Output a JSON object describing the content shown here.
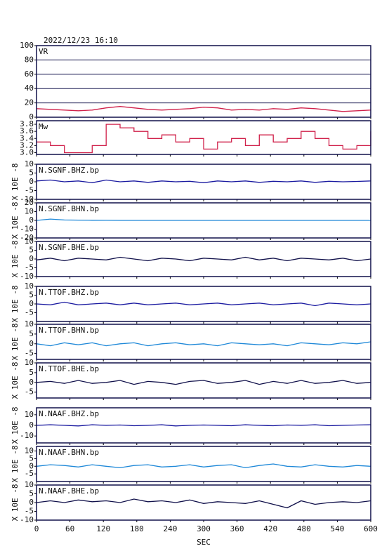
{
  "chart_data": [
    {
      "type": "line",
      "title": "2022/12/23 16:10",
      "label": "VR",
      "color": "#d0204a",
      "grid": true,
      "x": [
        0,
        25,
        50,
        75,
        100,
        125,
        150,
        175,
        200,
        225,
        250,
        275,
        300,
        325,
        350,
        375,
        400,
        425,
        450,
        475,
        500,
        525,
        550,
        575,
        600
      ],
      "xlim": [
        0,
        600
      ],
      "values": [
        12,
        11,
        10,
        9,
        10,
        13,
        15,
        13,
        11,
        10,
        11,
        12,
        14,
        13,
        10,
        11,
        10,
        12,
        11,
        13,
        12,
        10,
        8,
        9,
        10
      ],
      "ylim": [
        0,
        100
      ],
      "yticks": [
        0,
        20,
        40,
        60,
        80,
        100
      ]
    },
    {
      "type": "step",
      "label": "Mw",
      "color": "#d0204a",
      "x": [
        0,
        25,
        50,
        75,
        100,
        125,
        150,
        175,
        200,
        225,
        250,
        275,
        300,
        325,
        350,
        375,
        400,
        425,
        450,
        475,
        500,
        525,
        550,
        575,
        600
      ],
      "xlim": [
        0,
        600
      ],
      "values": [
        3.3,
        3.2,
        3.0,
        3.0,
        3.2,
        3.8,
        3.7,
        3.6,
        3.4,
        3.5,
        3.3,
        3.4,
        3.1,
        3.3,
        3.4,
        3.2,
        3.5,
        3.3,
        3.4,
        3.6,
        3.4,
        3.2,
        3.1,
        3.2,
        3.6
      ],
      "ylim": [
        2.95,
        3.9
      ],
      "yticks": [
        {
          "value": 3,
          "label": "3.0"
        },
        {
          "value": 3.2,
          "label": "3.2"
        },
        {
          "value": 3.4,
          "label": "3.4"
        },
        {
          "value": 3.6,
          "label": "3.6"
        },
        {
          "value": 3.8,
          "label": "3.8"
        }
      ]
    },
    {
      "type": "line",
      "label": "N.SGNF.BHZ.bp",
      "ylabel": "X 10E -8",
      "color": "#1a1aa0",
      "x": [
        0,
        25,
        50,
        75,
        100,
        125,
        150,
        175,
        200,
        225,
        250,
        275,
        300,
        325,
        350,
        375,
        400,
        425,
        450,
        475,
        500,
        525,
        550,
        575,
        600
      ],
      "xlim": [
        0,
        600
      ],
      "values": [
        0.5,
        1,
        0,
        0.5,
        -0.5,
        1,
        0,
        0.5,
        -0.3,
        0.5,
        0,
        0.3,
        -0.5,
        0.5,
        0,
        0.5,
        -0.3,
        0.3,
        0,
        0.5,
        -0.3,
        0.3,
        0,
        0.2,
        0.5
      ],
      "ylim": [
        -10,
        10
      ],
      "yticks": [
        -10,
        -5,
        0,
        5,
        10
      ]
    },
    {
      "type": "line",
      "label": "N.SGNF.BHN.bp",
      "ylabel": "X 10E -8",
      "color": "#1e88d8",
      "x": [
        0,
        25,
        50,
        75,
        100,
        125,
        150,
        175,
        200,
        225,
        250,
        275,
        300,
        325,
        350,
        375,
        400,
        425,
        450,
        475,
        500,
        525,
        550,
        575,
        600
      ],
      "xlim": [
        0,
        600
      ],
      "values": [
        0,
        1.5,
        0.5,
        0.3,
        0.2,
        0.1,
        0,
        0,
        0,
        0,
        0,
        0,
        0,
        0,
        0,
        0,
        0,
        0,
        0,
        0,
        0,
        0,
        0,
        0,
        0
      ],
      "ylim": [
        -20,
        20
      ],
      "yticks": [
        -20,
        -10,
        0,
        10,
        20
      ]
    },
    {
      "type": "line",
      "label": "N.SGNF.BHE.bp",
      "ylabel": "X 10E -8",
      "color": "#10104a",
      "x": [
        0,
        25,
        50,
        75,
        100,
        125,
        150,
        175,
        200,
        225,
        250,
        275,
        300,
        325,
        350,
        375,
        400,
        425,
        450,
        475,
        500,
        525,
        550,
        575,
        600
      ],
      "xlim": [
        0,
        600
      ],
      "values": [
        -0.5,
        0.5,
        -1,
        0.5,
        0,
        -0.5,
        1,
        0,
        -1,
        0.5,
        0,
        -1,
        0.5,
        0,
        -0.5,
        1,
        -0.5,
        0.5,
        -1,
        0.5,
        0,
        -0.5,
        0.5,
        -1,
        0
      ],
      "ylim": [
        -10,
        10
      ],
      "yticks": [
        -10,
        -5,
        0,
        5,
        10
      ]
    },
    {
      "type": "line",
      "label": "N.TTOF.BHZ.bp",
      "ylabel": "X 10E -8",
      "color": "#1a1aa0",
      "x": [
        0,
        25,
        50,
        75,
        100,
        125,
        150,
        175,
        200,
        225,
        250,
        275,
        300,
        325,
        350,
        375,
        400,
        425,
        450,
        475,
        500,
        525,
        550,
        575,
        600
      ],
      "xlim": [
        0,
        600
      ],
      "values": [
        0,
        -0.5,
        1,
        -0.5,
        0,
        0.5,
        -0.5,
        0.5,
        -0.5,
        0,
        0.5,
        -0.5,
        0,
        0.5,
        -0.5,
        0,
        0.5,
        -0.5,
        0,
        0.5,
        -1,
        0.5,
        0,
        -0.5,
        0
      ],
      "ylim": [
        -10,
        10
      ],
      "yticks": [
        -5,
        0,
        5,
        10
      ]
    },
    {
      "type": "line",
      "label": "N.TTOF.BHN.bp",
      "ylabel": "X 10E -8",
      "color": "#1e88d8",
      "x": [
        0,
        25,
        50,
        75,
        100,
        125,
        150,
        175,
        200,
        225,
        250,
        275,
        300,
        325,
        350,
        375,
        400,
        425,
        450,
        475,
        500,
        525,
        550,
        575,
        600
      ],
      "xlim": [
        0,
        600
      ],
      "values": [
        0,
        -1,
        0.5,
        -0.5,
        0.5,
        -1,
        0,
        0.5,
        -1,
        0,
        0.5,
        -0.5,
        0,
        -1,
        0.5,
        0,
        -0.5,
        0,
        -1,
        0.5,
        0,
        -0.5,
        0.5,
        0,
        1
      ],
      "ylim": [
        -8,
        10
      ],
      "yticks": [
        -5,
        0,
        5,
        10
      ]
    },
    {
      "type": "line",
      "label": "N.TTOF.BHE.bp",
      "ylabel": "X 10E -8",
      "color": "#10104a",
      "x": [
        0,
        25,
        50,
        75,
        100,
        125,
        150,
        175,
        200,
        225,
        250,
        275,
        300,
        325,
        350,
        375,
        400,
        425,
        450,
        475,
        500,
        525,
        550,
        575,
        600
      ],
      "xlim": [
        0,
        600
      ],
      "values": [
        0,
        0.5,
        -0.5,
        1,
        -0.5,
        0,
        1,
        -1,
        0.5,
        0,
        -1,
        0.5,
        1,
        -0.5,
        0,
        1,
        -1,
        0.5,
        -0.5,
        1,
        -0.5,
        0,
        1,
        -0.5,
        0
      ],
      "ylim": [
        -8,
        10
      ],
      "yticks": [
        -5,
        0,
        5,
        10
      ]
    },
    {
      "type": "line",
      "label": "N.NAAF.BHZ.bp",
      "ylabel": "X 10E -8",
      "color": "#1a1aa0",
      "x": [
        0,
        25,
        50,
        75,
        100,
        125,
        150,
        175,
        200,
        225,
        250,
        275,
        300,
        325,
        350,
        375,
        400,
        425,
        450,
        475,
        500,
        525,
        550,
        575,
        600
      ],
      "xlim": [
        0,
        600
      ],
      "values": [
        0,
        0.5,
        0,
        -0.5,
        0.5,
        0,
        0.3,
        -0.3,
        0,
        0.5,
        -0.5,
        0,
        0.3,
        0,
        -0.3,
        0.5,
        0,
        -0.3,
        0.3,
        0,
        0.5,
        -0.3,
        0,
        0.3,
        0.5
      ],
      "ylim": [
        -16.5,
        16.5
      ],
      "yticks": [
        -10,
        0,
        10
      ]
    },
    {
      "type": "line",
      "label": "N.NAAF.BHN.bp",
      "ylabel": "X 10E -8",
      "color": "#1e88d8",
      "x": [
        0,
        25,
        50,
        75,
        100,
        125,
        150,
        175,
        200,
        225,
        250,
        275,
        300,
        325,
        350,
        375,
        400,
        425,
        450,
        475,
        500,
        525,
        550,
        575,
        600
      ],
      "xlim": [
        0,
        600
      ],
      "values": [
        0,
        1,
        0.5,
        -0.5,
        1,
        0,
        -1,
        0.5,
        1,
        -0.5,
        0,
        1,
        -0.5,
        0.5,
        1,
        -1,
        0.5,
        1.5,
        0,
        -0.5,
        1,
        0,
        -0.5,
        0.5,
        0
      ],
      "ylim": [
        -10,
        13
      ],
      "yticks": [
        -5,
        0,
        5,
        10
      ]
    },
    {
      "type": "line",
      "label": "N.NAAF.BHE.bp",
      "ylabel": "X 10E -8",
      "color": "#10104a",
      "xlabel": "SEC",
      "x": [
        0,
        25,
        50,
        75,
        100,
        125,
        150,
        175,
        200,
        225,
        250,
        275,
        300,
        325,
        350,
        375,
        400,
        425,
        450,
        475,
        500,
        525,
        550,
        575,
        600
      ],
      "xlim": [
        0,
        600
      ],
      "xticks": [
        0,
        60,
        120,
        180,
        240,
        300,
        360,
        420,
        480,
        540,
        600
      ],
      "values": [
        0,
        1,
        0,
        1.5,
        0.5,
        1,
        0,
        2,
        0.5,
        1,
        0,
        1.5,
        -0.5,
        0.5,
        0,
        -0.5,
        1,
        -1,
        -3,
        1,
        -1,
        0,
        0.5,
        0,
        1
      ],
      "ylim": [
        -10,
        10
      ],
      "yticks": [
        -10,
        -5,
        0,
        5,
        10
      ]
    }
  ]
}
